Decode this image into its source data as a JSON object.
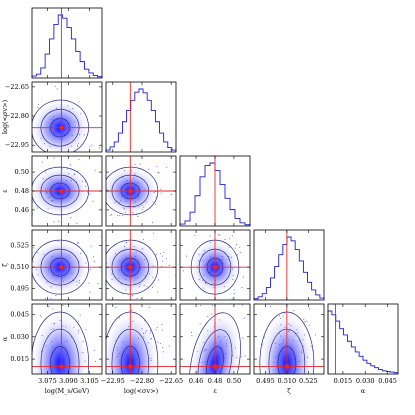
{
  "chart_data": {
    "type": "corner",
    "parameters": [
      {
        "label": "log(M_s/GeV)",
        "label_display": "log(M_s/GeV)",
        "range": [
          3.064,
          3.114
        ],
        "truth": 3.085,
        "ticks": [
          "3.075",
          "3.090",
          "3.105"
        ],
        "tick_values": [
          3.075,
          3.09,
          3.105
        ]
      },
      {
        "label": "log(<σv>)",
        "label_display": "log(<σv>)",
        "range": [
          -22.985,
          -22.625
        ],
        "truth": -22.86,
        "ticks": [
          "−22.95",
          "−22.80",
          "−22.65"
        ],
        "tick_values": [
          -22.95,
          -22.8,
          -22.65
        ]
      },
      {
        "label": "ε",
        "label_display": "ε",
        "range": [
          0.443,
          0.517
        ],
        "truth": 0.48,
        "ticks": [
          "0.46",
          "0.48",
          "0.50"
        ],
        "tick_values": [
          0.46,
          0.48,
          0.5
        ]
      },
      {
        "label": "ζ",
        "label_display": "ζ",
        "range": [
          0.487,
          0.536
        ],
        "truth": 0.51,
        "ticks": [
          "0.495",
          "0.510",
          "0.525"
        ],
        "tick_values": [
          0.495,
          0.51,
          0.525
        ]
      },
      {
        "label": "α",
        "label_display": "α",
        "range": [
          0.005,
          0.052
        ],
        "truth": 0.01,
        "ticks": [
          "0.015",
          "0.030",
          "0.045"
        ],
        "tick_values": [
          0.015,
          0.03,
          0.045
        ]
      }
    ],
    "histograms": [
      [
        0.03,
        0.06,
        0.16,
        0.38,
        0.62,
        0.85,
        1.0,
        0.95,
        0.8,
        0.62,
        0.42,
        0.26,
        0.14,
        0.08,
        0.04,
        0.02
      ],
      [
        0.03,
        0.08,
        0.16,
        0.3,
        0.48,
        0.66,
        0.82,
        0.95,
        1.0,
        0.94,
        0.82,
        0.66,
        0.48,
        0.3,
        0.16,
        0.07,
        0.03
      ],
      [
        0.03,
        0.08,
        0.22,
        0.48,
        0.78,
        0.96,
        1.0,
        0.88,
        0.66,
        0.44,
        0.26,
        0.12,
        0.05,
        0.02
      ],
      [
        0.02,
        0.05,
        0.1,
        0.2,
        0.35,
        0.53,
        0.72,
        0.88,
        1.0,
        0.94,
        0.8,
        0.62,
        0.44,
        0.28,
        0.16,
        0.08,
        0.03
      ],
      [
        1.0,
        0.94,
        0.84,
        0.72,
        0.62,
        0.52,
        0.43,
        0.35,
        0.28,
        0.22,
        0.17,
        0.13,
        0.1,
        0.07,
        0.05,
        0.04,
        0.03,
        0.02
      ]
    ],
    "pairs": [
      {
        "row": 1,
        "col": 0,
        "center": [
          3.084,
          -22.86
        ],
        "sigma": [
          0.0065,
          0.045
        ],
        "corr": 0.35
      },
      {
        "row": 2,
        "col": 0,
        "center": [
          3.084,
          0.48
        ],
        "sigma": [
          0.0065,
          0.008
        ],
        "corr": 0.0
      },
      {
        "row": 2,
        "col": 1,
        "center": [
          -22.86,
          0.48
        ],
        "sigma": [
          0.045,
          0.008
        ],
        "corr": 0.0
      },
      {
        "row": 3,
        "col": 0,
        "center": [
          3.084,
          0.51
        ],
        "sigma": [
          0.0065,
          0.006
        ],
        "corr": 0.0
      },
      {
        "row": 3,
        "col": 1,
        "center": [
          -22.86,
          0.51
        ],
        "sigma": [
          0.045,
          0.006
        ],
        "corr": 0.0
      },
      {
        "row": 3,
        "col": 2,
        "center": [
          0.48,
          0.51
        ],
        "sigma": [
          0.008,
          0.006
        ],
        "corr": 0.0
      },
      {
        "row": 4,
        "col": 0,
        "center": [
          3.084,
          0.012
        ],
        "sigma": [
          0.0065,
          0.011
        ],
        "corr": 0.0
      },
      {
        "row": 4,
        "col": 1,
        "center": [
          -22.86,
          0.012
        ],
        "sigma": [
          0.045,
          0.011
        ],
        "corr": 0.0
      },
      {
        "row": 4,
        "col": 2,
        "center": [
          0.48,
          0.012
        ],
        "sigma": [
          0.008,
          0.011
        ],
        "corr": -0.25
      },
      {
        "row": 4,
        "col": 3,
        "center": [
          0.51,
          0.012
        ],
        "sigma": [
          0.006,
          0.011
        ],
        "corr": 0.0
      }
    ],
    "contour_levels_sigma": [
      1,
      2,
      3
    ],
    "colors": {
      "histogram": "#1f1fd6",
      "contour": "#2a2a8c",
      "density": "#1a1aff",
      "truth": "#e8262a",
      "point": "#0000ff"
    },
    "grid": false,
    "legend": "none"
  }
}
